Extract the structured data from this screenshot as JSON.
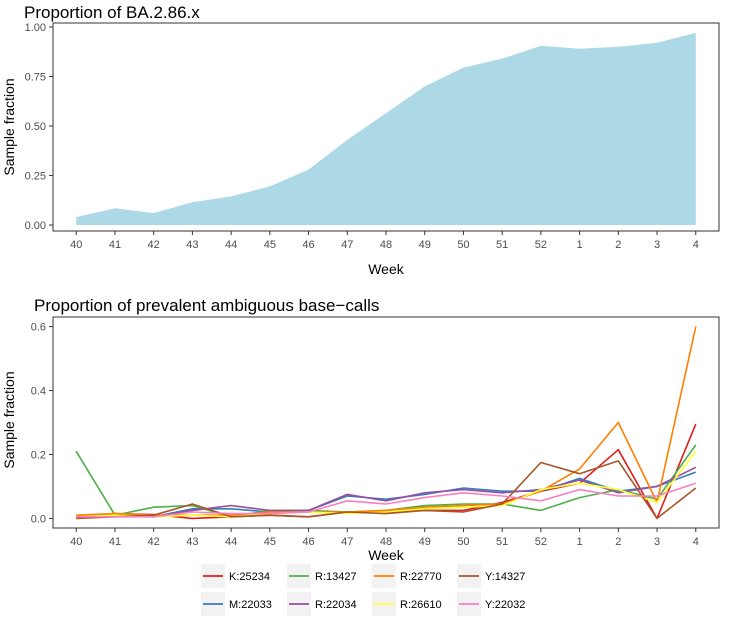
{
  "chart_data": [
    {
      "type": "area",
      "title": "Proportion of BA.2.86.x",
      "xlabel": "Week",
      "ylabel": "Sample fraction",
      "categories": [
        "40",
        "41",
        "42",
        "43",
        "44",
        "45",
        "46",
        "47",
        "48",
        "49",
        "50",
        "51",
        "52",
        "1",
        "2",
        "3",
        "4"
      ],
      "yticks": [
        "0.00",
        "0.25",
        "0.50",
        "0.75",
        "1.00"
      ],
      "ylim": [
        -0.03,
        1.02
      ],
      "fill_color": "#add8e6",
      "values": [
        0.04,
        0.085,
        0.06,
        0.115,
        0.145,
        0.195,
        0.28,
        0.43,
        0.565,
        0.7,
        0.795,
        0.84,
        0.905,
        0.89,
        0.9,
        0.92,
        0.97
      ]
    },
    {
      "type": "line",
      "title": "Proportion of prevalent ambiguous base−calls",
      "xlabel": "Week",
      "ylabel": "Sample fraction",
      "categories": [
        "40",
        "41",
        "42",
        "43",
        "44",
        "45",
        "46",
        "47",
        "48",
        "49",
        "50",
        "51",
        "52",
        "1",
        "2",
        "3",
        "4"
      ],
      "yticks": [
        "0.0",
        "0.2",
        "0.4",
        "0.6"
      ],
      "ylim": [
        -0.03,
        0.63
      ],
      "legend_position": "bottom",
      "series": [
        {
          "name": "K:25234",
          "color": "#e41a1c",
          "values": [
            0.005,
            0.015,
            0.012,
            0.0,
            0.005,
            0.01,
            0.005,
            0.02,
            0.02,
            0.025,
            0.025,
            0.05,
            0.085,
            0.11,
            0.215,
            0.0,
            0.295
          ]
        },
        {
          "name": "M:22033",
          "color": "#377eb8",
          "values": [
            0.005,
            0.01,
            0.005,
            0.03,
            0.03,
            0.02,
            0.025,
            0.07,
            0.06,
            0.075,
            0.095,
            0.085,
            0.085,
            0.125,
            0.085,
            0.1,
            0.145
          ]
        },
        {
          "name": "R:13427",
          "color": "#4daf4a",
          "values": [
            0.21,
            0.01,
            0.035,
            0.04,
            0.005,
            0.025,
            0.025,
            0.02,
            0.025,
            0.04,
            0.045,
            0.045,
            0.025,
            0.065,
            0.09,
            0.06,
            0.23
          ]
        },
        {
          "name": "R:22034",
          "color": "#984ea3",
          "values": [
            0.005,
            0.01,
            0.005,
            0.025,
            0.04,
            0.025,
            0.025,
            0.075,
            0.055,
            0.08,
            0.09,
            0.08,
            0.09,
            0.12,
            0.08,
            0.1,
            0.16
          ]
        },
        {
          "name": "R:22770",
          "color": "#ff7f00",
          "values": [
            0.01,
            0.015,
            0.01,
            0.01,
            0.01,
            0.02,
            0.02,
            0.02,
            0.025,
            0.035,
            0.04,
            0.045,
            0.085,
            0.155,
            0.3,
            0.05,
            0.6
          ]
        },
        {
          "name": "R:26610",
          "color": "#ffff33",
          "values": [
            0.005,
            0.01,
            0.005,
            0.01,
            0.005,
            0.015,
            0.02,
            0.015,
            0.02,
            0.03,
            0.035,
            0.04,
            0.09,
            0.11,
            0.09,
            0.05,
            0.21
          ]
        },
        {
          "name": "Y:14327",
          "color": "#a65628",
          "values": [
            0.0,
            0.005,
            0.01,
            0.045,
            0.005,
            0.01,
            0.005,
            0.02,
            0.015,
            0.025,
            0.02,
            0.045,
            0.175,
            0.14,
            0.18,
            0.0,
            0.095
          ]
        },
        {
          "name": "Y:22032",
          "color": "#f781bf",
          "values": [
            0.005,
            0.005,
            0.005,
            0.02,
            0.015,
            0.015,
            0.02,
            0.055,
            0.045,
            0.065,
            0.08,
            0.07,
            0.055,
            0.09,
            0.07,
            0.07,
            0.11
          ]
        }
      ]
    }
  ]
}
